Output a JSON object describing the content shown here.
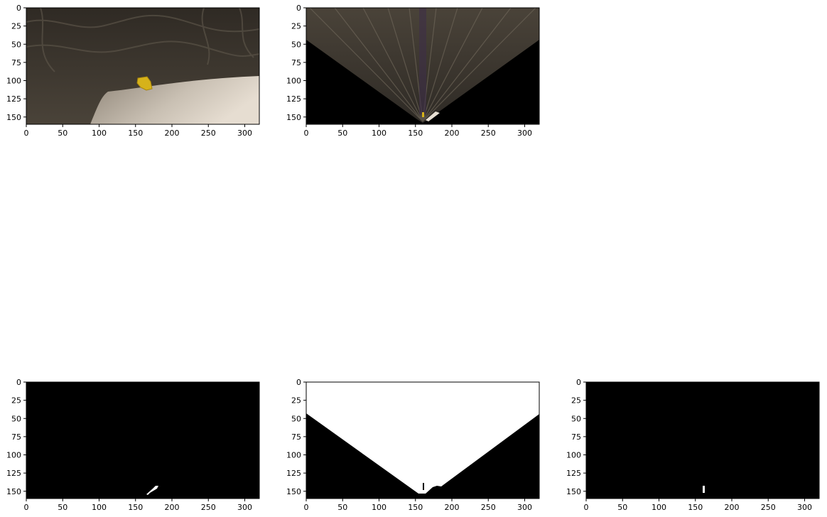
{
  "figure": {
    "background": "#ffffff",
    "tick_color": "#000000",
    "rows": 2,
    "cols": 3
  },
  "chart_data": [
    {
      "type": "image",
      "content": "camera view: dark rock surfaces, light sandy ground at lower right, yellow rock sample near center",
      "xlim": [
        0,
        320
      ],
      "ylim": [
        160,
        0
      ],
      "xticks": [
        0,
        50,
        100,
        150,
        200,
        250,
        300
      ],
      "yticks": [
        0,
        25,
        50,
        75,
        100,
        125,
        150
      ],
      "colors": {
        "rock": "#3a342c",
        "ground": "#c9c0b3",
        "sample": "#d6b21a"
      }
    },
    {
      "type": "image",
      "content": "perspective-warped top-down view: fan of dark streaks converging to bottom center, black outside field of view",
      "xlim": [
        0,
        320
      ],
      "ylim": [
        160,
        0
      ],
      "xticks": [
        0,
        50,
        100,
        150,
        200,
        250,
        300
      ],
      "yticks": [
        0,
        25,
        50,
        75,
        100,
        125,
        150
      ],
      "colors": {
        "fan": "#3b362f",
        "outside": "#000000",
        "sample": "#d6b21a"
      }
    },
    {
      "type": "empty"
    },
    {
      "type": "image",
      "content": "binary threshold: black field with a small white navigable patch near bottom",
      "xlim": [
        0,
        320
      ],
      "ylim": [
        160,
        0
      ],
      "xticks": [
        0,
        50,
        100,
        150,
        200,
        250,
        300
      ],
      "yticks": [
        0,
        25,
        50,
        75,
        100,
        125,
        150
      ],
      "colors": {
        "background": "#000000",
        "mask": "#ffffff"
      }
    },
    {
      "type": "image",
      "content": "binary mask: white inverted triangle above black wedge boundaries",
      "xlim": [
        0,
        320
      ],
      "ylim": [
        160,
        0
      ],
      "xticks": [
        0,
        50,
        100,
        150,
        200,
        250,
        300
      ],
      "yticks": [
        0,
        25,
        50,
        75,
        100,
        125,
        150
      ],
      "colors": {
        "background": "#000000",
        "mask": "#ffffff"
      }
    },
    {
      "type": "image",
      "content": "binary rock-sample mask: black field with small white blob near bottom center",
      "xlim": [
        0,
        320
      ],
      "ylim": [
        160,
        0
      ],
      "xticks": [
        0,
        50,
        100,
        150,
        200,
        250,
        300
      ],
      "yticks": [
        0,
        25,
        50,
        75,
        100,
        125,
        150
      ],
      "colors": {
        "background": "#000000",
        "mask": "#ffffff"
      }
    }
  ]
}
